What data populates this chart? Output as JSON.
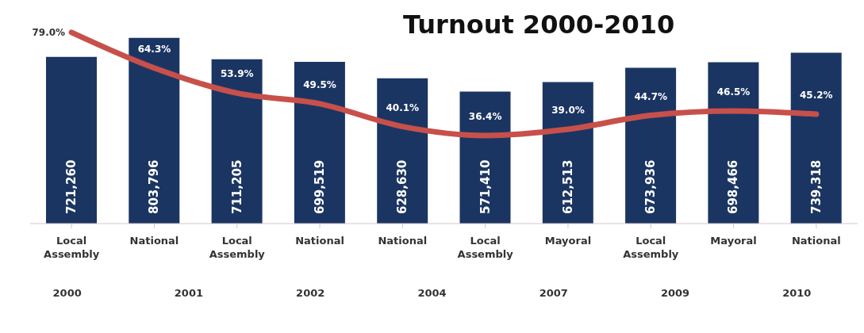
{
  "chart_data": {
    "type": "bar",
    "title": "Turnout 2000-2010",
    "categories": [
      "Local Assembly",
      "National",
      "Local Assembly",
      "National",
      "National",
      "Local Assembly",
      "Mayoral",
      "Local Assembly",
      "Mayoral",
      "National"
    ],
    "series": [
      {
        "color": "#1b3563",
        "values": [
          721260,
          803796,
          711205,
          699519,
          628630,
          571410,
          612513,
          673936,
          698466,
          739318
        ],
        "value_labels": [
          "721,260",
          "803,796",
          "711,205",
          "699,519",
          "628,630",
          "571,410",
          "612,513",
          "673,936",
          "698,466",
          "739,318"
        ]
      },
      {
        "type": "line",
        "axis": "y2",
        "color": "#c8504a",
        "values": [
          79.0,
          64.3,
          53.9,
          49.5,
          40.1,
          36.4,
          39.0,
          44.7,
          46.5,
          45.2
        ],
        "value_labels": [
          "79.0%",
          "64.3%",
          "53.9%",
          "49.5%",
          "40.1%",
          "36.4%",
          "39.0%",
          "44.7%",
          "46.5%",
          "45.2%"
        ]
      }
    ],
    "annotations": [
      "2000",
      "2001",
      "2002",
      "2004",
      "2007",
      "2009",
      "2010"
    ],
    "legend": false,
    "grid": false
  }
}
